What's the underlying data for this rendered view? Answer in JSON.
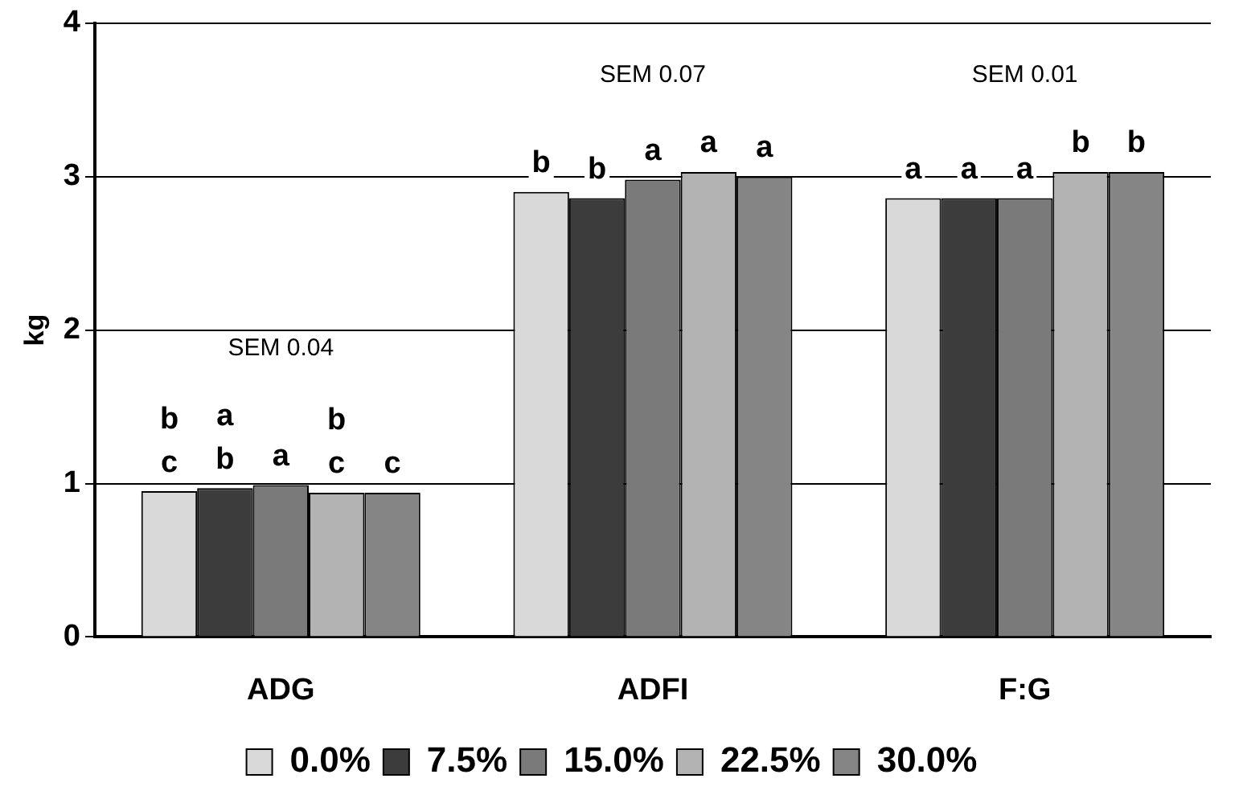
{
  "chart_data": {
    "type": "bar",
    "categories": [
      "ADG",
      "ADFI",
      "F:G"
    ],
    "ylabel": "kg",
    "ylim": [
      0,
      4
    ],
    "yticks": [
      0,
      1,
      2,
      3,
      4
    ],
    "grid": "y",
    "legend": "bottom",
    "series": [
      {
        "name": "0.0%",
        "color": "#d9d9d9",
        "values": [
          0.95,
          2.9,
          2.86
        ],
        "value_labels": [
          "b\nc",
          "b",
          "a"
        ]
      },
      {
        "name": "7.5%",
        "color": "#3c3c3c",
        "values": [
          0.97,
          2.86,
          2.86
        ],
        "value_labels": [
          "a\nb",
          "b",
          "a"
        ]
      },
      {
        "name": "15.0%",
        "color": "#7a7a7a",
        "values": [
          0.99,
          2.98,
          2.86
        ],
        "value_labels": [
          "a",
          "a",
          "a"
        ]
      },
      {
        "name": "22.5%",
        "color": "#b3b3b3",
        "values": [
          0.94,
          3.03,
          3.03
        ],
        "value_labels": [
          "b\nc",
          "a",
          "b"
        ]
      },
      {
        "name": "30.0%",
        "color": "#858585",
        "values": [
          0.94,
          3.0,
          3.03
        ],
        "value_labels": [
          "c",
          "a",
          "b"
        ]
      }
    ],
    "annotations": [
      "SEM 0.04",
      "SEM 0.07",
      "SEM 0.01"
    ]
  }
}
